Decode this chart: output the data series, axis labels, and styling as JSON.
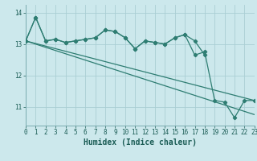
{
  "xlabel": "Humidex (Indice chaleur)",
  "bg_color": "#cce8ec",
  "grid_color": "#aaced4",
  "line_color": "#2e7d72",
  "x": [
    0,
    1,
    2,
    3,
    4,
    5,
    6,
    7,
    8,
    9,
    10,
    11,
    12,
    13,
    14,
    15,
    16,
    17,
    18,
    19,
    20,
    21,
    22,
    23
  ],
  "line1_y": [
    13.1,
    13.85,
    13.1,
    13.15,
    13.05,
    13.1,
    13.15,
    13.2,
    13.45,
    13.4,
    13.2,
    12.85,
    13.1,
    13.05,
    13.0,
    13.2,
    13.3,
    13.1,
    12.65,
    null,
    null,
    null,
    null,
    null
  ],
  "line2_y": [
    13.1,
    13.85,
    13.1,
    13.15,
    13.05,
    13.1,
    13.15,
    13.2,
    13.45,
    13.4,
    13.2,
    12.85,
    13.1,
    13.05,
    13.0,
    13.2,
    13.3,
    12.65,
    12.75,
    11.2,
    11.15,
    10.65,
    11.2,
    11.2
  ],
  "line3_x": [
    0,
    23
  ],
  "line3_y": [
    13.1,
    11.2
  ],
  "line4_x": [
    0,
    23
  ],
  "line4_y": [
    13.1,
    10.75
  ],
  "ylim": [
    10.4,
    14.25
  ],
  "xlim": [
    0,
    23
  ],
  "yticks": [
    11,
    12,
    13,
    14
  ],
  "xticks": [
    0,
    1,
    2,
    3,
    4,
    5,
    6,
    7,
    8,
    9,
    10,
    11,
    12,
    13,
    14,
    15,
    16,
    17,
    18,
    19,
    20,
    21,
    22,
    23
  ],
  "tick_fontsize": 5.5,
  "xlabel_fontsize": 7.0,
  "marker_size": 2.2,
  "line_width": 0.9
}
